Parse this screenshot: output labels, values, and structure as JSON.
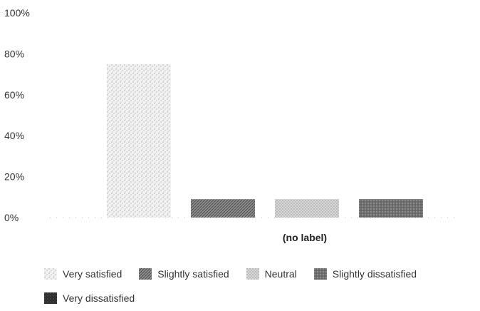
{
  "chart_data": {
    "type": "bar",
    "categories": [
      "(no label)"
    ],
    "series": [
      {
        "name": "Very satisfied",
        "values": [
          75
        ],
        "color": "#e8e8e8",
        "pattern": "light-stipple"
      },
      {
        "name": "Slightly satisfied",
        "values": [
          9
        ],
        "color": "#7a7a7a",
        "pattern": "dark-hatch"
      },
      {
        "name": "Neutral",
        "values": [
          9
        ],
        "color": "#cfcfcf",
        "pattern": "medium-stipple"
      },
      {
        "name": "Slightly dissatisfied",
        "values": [
          9
        ],
        "color": "#6e6e6e",
        "pattern": "dark-stipple"
      },
      {
        "name": "Very dissatisfied",
        "values": [
          0
        ],
        "color": "#3a3a3a",
        "pattern": "very-dark"
      }
    ],
    "yticks": [
      "0%",
      "20%",
      "40%",
      "60%",
      "80%",
      "100%"
    ],
    "ylim": [
      0,
      100
    ],
    "title": "",
    "xlabel": "",
    "ylabel": "",
    "grid": false,
    "legend_position": "bottom"
  }
}
